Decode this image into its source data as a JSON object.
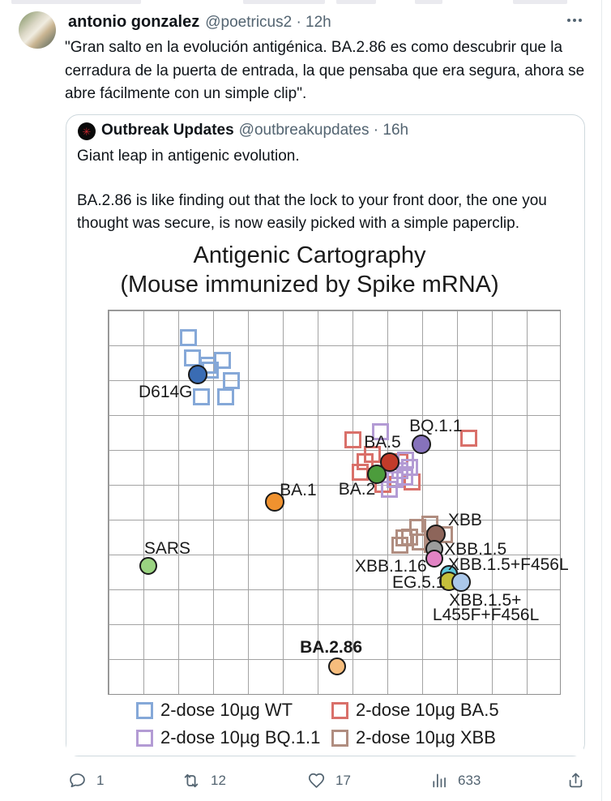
{
  "tweet": {
    "author": "antonio gonzalez",
    "meta": "@poetricus2 · 12h",
    "body_lines": [
      "\"Gran salto en la evolución antigénica. BA.2.86 es como descubrir que la",
      "cerradura de la puerta de entrada, la que pensaba que era segura, ahora se",
      "abre fácilmente con un simple clip\"."
    ]
  },
  "quote": {
    "author": "Outbreak Updates",
    "meta": "@outbreakupdates · 16h",
    "body_lines": [
      "Giant leap in antigenic evolution.",
      "",
      "BA.2.86 is like finding out that the lock to your front door, the one you",
      "thought was secure, is now easily picked with a simple paperclip."
    ]
  },
  "icons": {
    "virus_glyph": "✳",
    "reply": "speech-bubble",
    "repost": "retweet-arrows",
    "like": "heart-outline",
    "views": "bar-chart",
    "share": "arrow-up-from-tray",
    "more": "three-dots"
  },
  "chart_data": {
    "type": "scatter",
    "title": "Antigenic Cartography",
    "subtitle": "(Mouse immunized by Spike mRNA)",
    "axes": {
      "x_label": "",
      "y_label": "",
      "ticks": "none",
      "grid": true,
      "cols": 13,
      "rows": 11,
      "units": "antigenic map units (1 grid square = 1 unit), x right / y down from top-left"
    },
    "virus_points": [
      {
        "name": "D614G",
        "x": 2.58,
        "y": 1.84,
        "r": 10,
        "color": "#3a6cb4"
      },
      {
        "name": "BA.1",
        "x": 4.77,
        "y": 5.51,
        "r": 10,
        "color": "#f0922f"
      },
      {
        "name": "BA.5",
        "x": 8.09,
        "y": 4.35,
        "r": 10,
        "color": "#c23b2a"
      },
      {
        "name": "BA.2",
        "x": 7.7,
        "y": 4.7,
        "r": 10,
        "color": "#4c9c3c"
      },
      {
        "name": "BQ.1.1",
        "x": 8.98,
        "y": 3.84,
        "r": 10,
        "color": "#8672bb"
      },
      {
        "name": "XBB",
        "x": 9.4,
        "y": 6.42,
        "r": 10,
        "color": "#8d655a"
      },
      {
        "name": "XBB.1.5",
        "x": 9.35,
        "y": 6.86,
        "r": 9,
        "color": "#9c9c9c"
      },
      {
        "name": "XBB.1.16",
        "x": 9.35,
        "y": 7.12,
        "r": 9,
        "color": "#e283c4"
      },
      {
        "name": "XBB.1.5+F456L",
        "x": 9.77,
        "y": 7.56,
        "r": 9,
        "color": "#5ec6d8"
      },
      {
        "name": "EG.5.1",
        "x": 9.79,
        "y": 7.77,
        "r": 10,
        "color": "#c5bf3b"
      },
      {
        "name": "XBB.1.5+L455F+F456L",
        "x": 10.12,
        "y": 7.81,
        "r": 10,
        "color": "#abc8ea"
      },
      {
        "name": "SARS",
        "x": 1.14,
        "y": 7.33,
        "r": 9,
        "color": "#9ad381"
      },
      {
        "name": "BA.2.86",
        "x": 6.56,
        "y": 10.23,
        "r": 9,
        "color": "#f6bd7d"
      }
    ],
    "annotations": [
      {
        "text": "D614G",
        "x": 0.86,
        "y": 2.09,
        "bold": false
      },
      {
        "text": "BA.1",
        "x": 4.91,
        "y": 4.91,
        "bold": false
      },
      {
        "text": "BA.5",
        "x": 7.33,
        "y": 3.53,
        "bold": false
      },
      {
        "text": "BA.2",
        "x": 6.6,
        "y": 4.88,
        "bold": false
      },
      {
        "text": "BQ.1.1",
        "x": 8.63,
        "y": 3.07,
        "bold": false
      },
      {
        "text": "XBB",
        "x": 9.74,
        "y": 5.77,
        "bold": false
      },
      {
        "text": "XBB.1.5",
        "x": 9.63,
        "y": 6.6,
        "bold": false
      },
      {
        "text": "XBB.1.16",
        "x": 7.07,
        "y": 7.09,
        "bold": false
      },
      {
        "text": "XBB.1.5+F456L",
        "x": 9.74,
        "y": 7.05,
        "bold": false
      },
      {
        "text": "EG.5.1",
        "x": 8.14,
        "y": 7.56,
        "bold": false
      },
      {
        "text": "XBB.1.5+",
        "x": 9.77,
        "y": 8.07,
        "bold": false
      },
      {
        "text": "L455F+F456L",
        "x": 9.3,
        "y": 8.49,
        "bold": false
      },
      {
        "text": "SARS",
        "x": 1.02,
        "y": 6.58,
        "bold": false
      },
      {
        "text": "BA.2.86",
        "x": 5.49,
        "y": 9.42,
        "bold": true
      }
    ],
    "sera_series": [
      {
        "name": "2-dose 10µg WT",
        "short": "wt",
        "color": "#85a8d8",
        "points": [
          [
            2.28,
            0.77
          ],
          [
            2.4,
            1.37
          ],
          [
            2.84,
            1.56
          ],
          [
            3.26,
            1.42
          ],
          [
            2.91,
            1.72
          ],
          [
            3.53,
            2.02
          ],
          [
            2.67,
            2.47
          ],
          [
            3.35,
            2.47
          ]
        ]
      },
      {
        "name": "2-dose 10µg BA.5",
        "short": "ba5",
        "color": "#d9706a",
        "points": [
          [
            7.0,
            3.7
          ],
          [
            7.58,
            4.12
          ],
          [
            7.37,
            4.33
          ],
          [
            7.23,
            4.65
          ],
          [
            7.88,
            4.98
          ],
          [
            8.72,
            4.91
          ],
          [
            10.33,
            3.67
          ],
          [
            8.37,
            4.33
          ]
        ]
      },
      {
        "name": "2-dose 10µg BQ.1.1",
        "short": "bq11",
        "color": "#b39bd4",
        "points": [
          [
            7.81,
            3.47
          ],
          [
            8.53,
            4.3
          ],
          [
            8.65,
            4.49
          ],
          [
            8.35,
            4.6
          ],
          [
            8.49,
            4.77
          ],
          [
            8.23,
            4.84
          ],
          [
            8.05,
            5.12
          ]
        ]
      },
      {
        "name": "2-dose 10µg XBB",
        "short": "xbb",
        "color": "#b08d80",
        "points": [
          [
            9.23,
            6.12
          ],
          [
            8.88,
            6.23
          ],
          [
            9.63,
            6.42
          ],
          [
            8.65,
            6.51
          ],
          [
            8.35,
            6.74
          ],
          [
            8.95,
            6.63
          ],
          [
            9.3,
            6.7
          ],
          [
            8.47,
            6.53
          ]
        ]
      }
    ],
    "legend": {
      "position": "bottom",
      "items": [
        {
          "label": "2-dose 10µg WT",
          "color": "#85a8d8"
        },
        {
          "label": "2-dose 10µg BA.5",
          "color": "#d9706a"
        },
        {
          "label": "2-dose 10µg BQ.1.1",
          "color": "#b39bd4"
        },
        {
          "label": "2-dose 10µg XBB",
          "color": "#b08d80"
        }
      ]
    }
  },
  "actions": {
    "reply": "1",
    "repost": "12",
    "like": "17",
    "views": "633"
  }
}
